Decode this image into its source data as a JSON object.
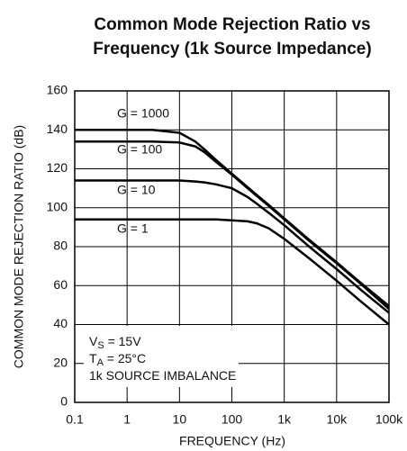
{
  "chart_data": {
    "type": "line",
    "title": [
      "Common Mode Rejection Ratio vs",
      "Frequency (1k Source Impedance)"
    ],
    "xlabel": "FREQUENCY (Hz)",
    "ylabel": "COMMON MODE REJECTION RATIO (dB)",
    "xscale": "log",
    "grid": true,
    "x": [
      0.1,
      1,
      3,
      10,
      20,
      30,
      50,
      100,
      200,
      300,
      500,
      1000,
      3000,
      10000,
      30000,
      100000
    ],
    "series": [
      {
        "name": "G = 1000",
        "color": "#000000",
        "values": [
          140,
          140,
          140,
          138.5,
          134,
          130,
          124.5,
          117.5,
          110.5,
          106.5,
          101.5,
          94.5,
          83.5,
          72,
          61,
          49.5
        ]
      },
      {
        "name": "G = 100",
        "color": "#000000",
        "values": [
          134,
          134,
          134,
          133.5,
          131.5,
          128.5,
          123.5,
          117,
          110,
          106,
          101,
          94,
          83,
          71.5,
          60.5,
          48
        ]
      },
      {
        "name": "G = 10",
        "color": "#000000",
        "values": [
          114,
          114,
          114,
          114,
          113.5,
          113,
          112,
          110,
          105.5,
          102,
          97.5,
          91,
          80,
          68.5,
          57.5,
          46
        ]
      },
      {
        "name": "G = 1",
        "color": "#000000",
        "values": [
          94,
          94,
          94,
          94,
          94,
          94,
          94,
          93.5,
          93,
          92,
          89.5,
          84,
          74,
          62.5,
          51.5,
          40
        ]
      }
    ],
    "xlim": [
      0.1,
      100000
    ],
    "xticks": [
      0.1,
      1,
      10,
      100,
      {
        "value": 1000,
        "label": "1k"
      },
      {
        "value": 10000,
        "label": "10k"
      },
      {
        "value": 100000,
        "label": "100k"
      }
    ],
    "ylim": [
      0,
      160
    ],
    "yticks": [
      0,
      20,
      40,
      60,
      80,
      100,
      120,
      140,
      160
    ],
    "notes": [
      {
        "main": "V",
        "sub": "S",
        "rest": " = 15V"
      },
      {
        "main": "T",
        "sub": "A",
        "rest": " = 25°C"
      },
      {
        "main": "1k SOURCE IMBALANCE"
      }
    ]
  }
}
